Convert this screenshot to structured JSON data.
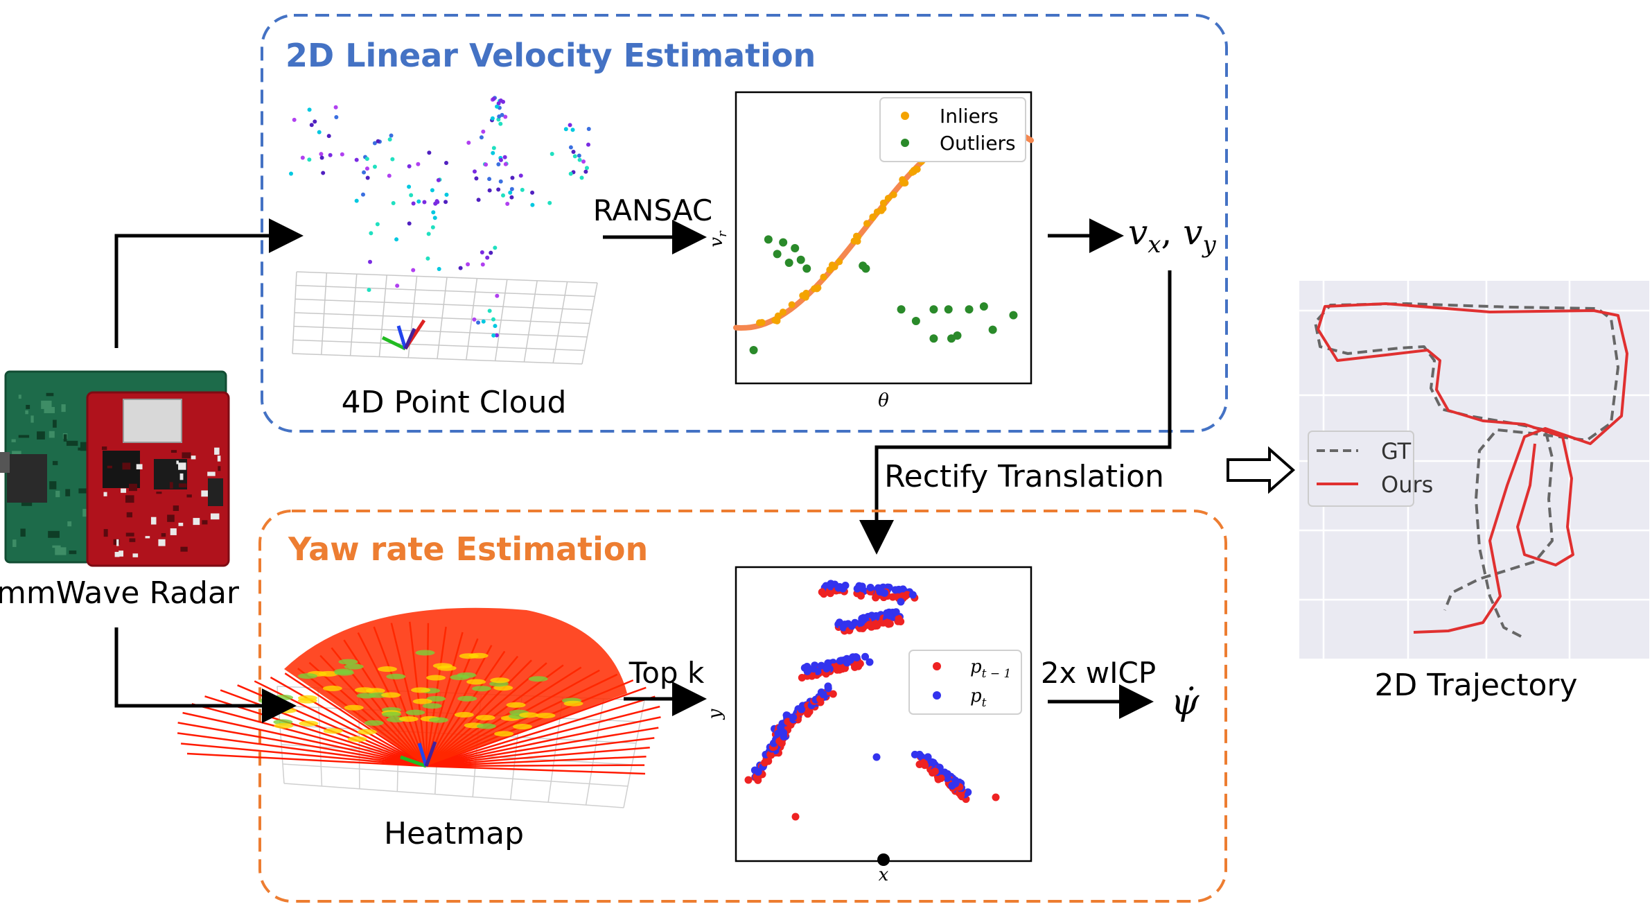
{
  "velocity_block": {
    "title": "2D Linear Velocity Estimation",
    "color": "#4472c4"
  },
  "yaw_block": {
    "title": "Yaw rate Estimation",
    "color": "#ed7d31"
  },
  "device": {
    "label": "mmWave Radar"
  },
  "point_cloud": {
    "label": "4D Point Cloud"
  },
  "heatmap": {
    "label": "Heatmap"
  },
  "ransac": {
    "label": "RANSAC"
  },
  "topk": {
    "label": "Top k"
  },
  "velocity_output": {
    "label": "v",
    "sub_x": "x",
    "sub_y": "y",
    "sep": ", "
  },
  "rectify": {
    "label": "Rectify Translation"
  },
  "wicp": {
    "label": "2x wICP"
  },
  "yaw_output": {
    "label": "ψ̇"
  },
  "ransac_plot": {
    "xlabel": "θ",
    "ylabel": "v",
    "ylabel_sub": "r",
    "legend": [
      {
        "name": "Inliers",
        "color": "#f4a300"
      },
      {
        "name": "Outliers",
        "color": "#2a8a2a"
      }
    ],
    "fit_color": "#f5874f"
  },
  "icp_plot": {
    "xlabel": "x",
    "ylabel": "y",
    "legend": [
      {
        "name": "p",
        "sub": "t − 1",
        "color": "#ee2222"
      },
      {
        "name": "p",
        "sub": "t",
        "color": "#3333ee"
      }
    ]
  },
  "trajectory": {
    "title": "2D Trajectory",
    "legend": [
      {
        "name": "GT",
        "color": "#666666",
        "style": "dashed"
      },
      {
        "name": "Ours",
        "color": "#e03030",
        "style": "solid"
      }
    ]
  }
}
